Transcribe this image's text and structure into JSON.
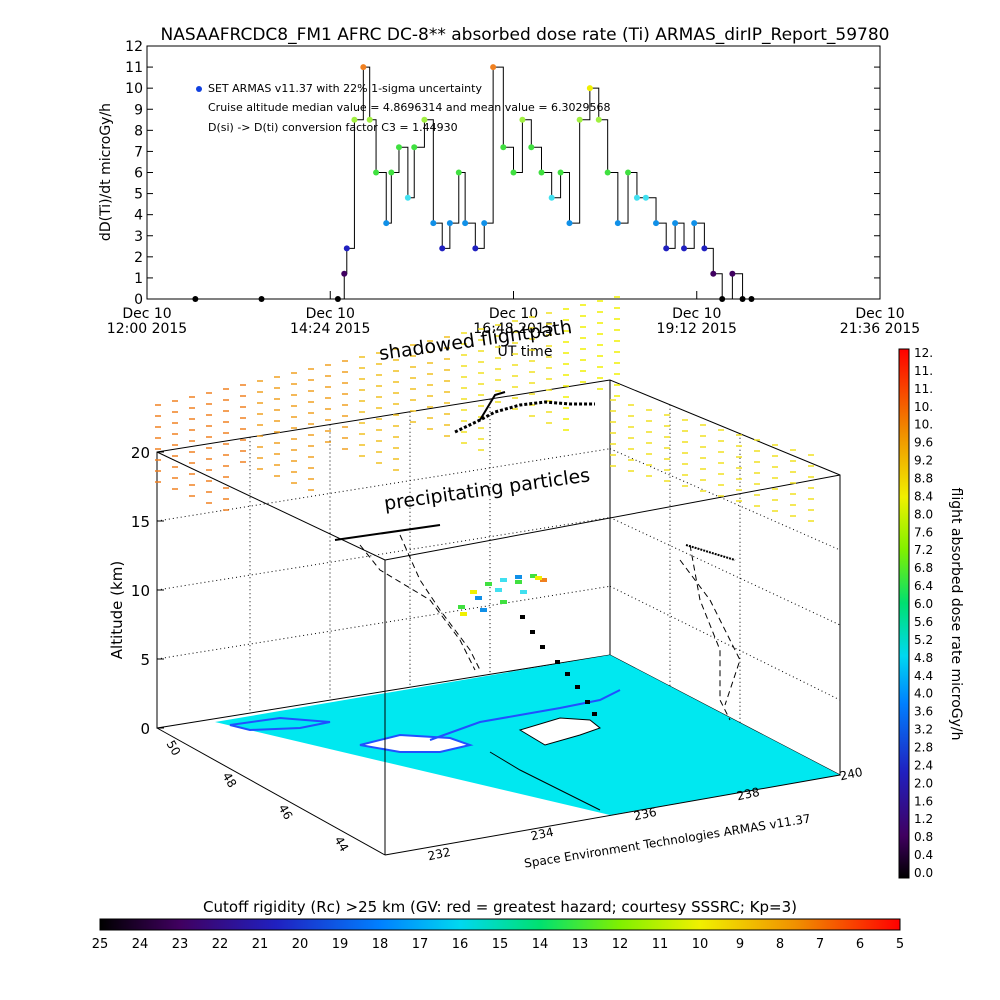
{
  "title": "NASAAFRCDC8_FM1 AFRC DC-8** absorbed dose rate (Ti) ARMAS_dirIP_Report_59780",
  "top_chart": {
    "ylabel": "dD(Ti)/dt microGy/h",
    "xlabel": "UT time",
    "legend": {
      "line1": "SET ARMAS v11.37 with 22% 1-sigma uncertainty",
      "line2": "Cruise altitude median value = 4.8696314 and mean value = 6.3029568",
      "line3": "D(si) -> D(ti) conversion factor C3 = 1.44930"
    },
    "x_ticks": [
      {
        "day": "Dec 10",
        "time": "12:00 2015"
      },
      {
        "day": "Dec 10",
        "time": "14:24 2015"
      },
      {
        "day": "Dec 10",
        "time": "16:48 2015"
      },
      {
        "day": "Dec 10",
        "time": "19:12 2015"
      },
      {
        "day": "Dec 10",
        "time": "21:36 2015"
      }
    ],
    "y_ticks": [
      "0",
      "1",
      "2",
      "3",
      "4",
      "5",
      "6",
      "7",
      "8",
      "9",
      "10",
      "11",
      "12"
    ]
  },
  "chart_data": {
    "type": "line",
    "title": "NASAAFRCDC8_FM1 AFRC DC-8** absorbed dose rate (Ti) ARMAS_dirIP_Report_59780",
    "xlabel": "UT time",
    "ylabel": "dD(Ti)/dt microGy/h",
    "xlim": [
      "2015-12-10 12:00",
      "2015-12-10 21:36"
    ],
    "ylim": [
      0,
      12
    ],
    "series": [
      {
        "name": "SET ARMAS v11.37 with 22% 1-sigma uncertainty",
        "x": [
          "2015-12-10 12:38",
          "2015-12-10 13:30",
          "2015-12-10 14:30",
          "2015-12-10 14:35",
          "2015-12-10 14:37",
          "2015-12-10 14:43",
          "2015-12-10 14:50",
          "2015-12-10 14:55",
          "2015-12-10 15:00",
          "2015-12-10 15:08",
          "2015-12-10 15:12",
          "2015-12-10 15:18",
          "2015-12-10 15:25",
          "2015-12-10 15:30",
          "2015-12-10 15:38",
          "2015-12-10 15:45",
          "2015-12-10 15:52",
          "2015-12-10 15:58",
          "2015-12-10 16:05",
          "2015-12-10 16:10",
          "2015-12-10 16:18",
          "2015-12-10 16:25",
          "2015-12-10 16:32",
          "2015-12-10 16:40",
          "2015-12-10 16:48",
          "2015-12-10 16:55",
          "2015-12-10 17:02",
          "2015-12-10 17:10",
          "2015-12-10 17:18",
          "2015-12-10 17:25",
          "2015-12-10 17:32",
          "2015-12-10 17:40",
          "2015-12-10 17:48",
          "2015-12-10 17:55",
          "2015-12-10 18:02",
          "2015-12-10 18:10",
          "2015-12-10 18:18",
          "2015-12-10 18:25",
          "2015-12-10 18:32",
          "2015-12-10 18:40",
          "2015-12-10 18:48",
          "2015-12-10 18:55",
          "2015-12-10 19:02",
          "2015-12-10 19:10",
          "2015-12-10 19:18",
          "2015-12-10 19:25",
          "2015-12-10 19:32",
          "2015-12-10 19:40",
          "2015-12-10 19:48",
          "2015-12-10 19:55"
        ],
        "values": [
          0,
          0,
          0,
          1.2,
          2.4,
          8.5,
          11,
          8.5,
          6,
          3.6,
          6,
          7.2,
          4.8,
          7.2,
          8.5,
          3.6,
          2.4,
          3.6,
          6,
          3.6,
          2.4,
          3.6,
          11,
          7.2,
          6,
          8.5,
          7.2,
          6,
          4.8,
          6,
          3.6,
          8.5,
          10,
          8.5,
          6,
          3.6,
          6,
          4.8,
          4.8,
          3.6,
          2.4,
          3.6,
          2.4,
          3.6,
          2.4,
          1.2,
          0,
          1.2,
          0,
          0
        ]
      }
    ]
  },
  "map_panel": {
    "annotation_path": "shadowed flightpath",
    "annotation_particles": "precipitating particles",
    "z_label": "Altitude (km)",
    "z_ticks": [
      "0",
      "5",
      "10",
      "15",
      "20"
    ],
    "lat_ticks": [
      "50",
      "48",
      "46",
      "44"
    ],
    "lon_ticks": [
      "232",
      "234",
      "236",
      "238",
      "240"
    ],
    "credit": "Space Environment Technologies ARMAS v11.37"
  },
  "dose_colorbar": {
    "label": "flight absorbed dose rate microGy/h",
    "ticks": [
      "12.",
      "11.",
      "11.",
      "10.",
      "10.",
      "9.6",
      "9.2",
      "8.8",
      "8.4",
      "8.0",
      "7.6",
      "7.2",
      "6.8",
      "6.4",
      "6.0",
      "5.6",
      "5.2",
      "4.8",
      "4.4",
      "4.0",
      "3.6",
      "3.2",
      "2.8",
      "2.4",
      "2.0",
      "1.6",
      "1.2",
      "0.8",
      "0.4",
      "0.0"
    ]
  },
  "rigidity_colorbar": {
    "label": "Cutoff rigidity (Rc) >25 km (GV: red = greatest hazard; courtesy SSSRC; Kp=3)",
    "ticks": [
      "25",
      "24",
      "23",
      "22",
      "21",
      "20",
      "19",
      "18",
      "17",
      "16",
      "15",
      "14",
      "13",
      "12",
      "11",
      "10",
      "9",
      "8",
      "7",
      "6",
      "5"
    ]
  },
  "colors": {
    "ocean": "#00e8f0",
    "coast": "#2050ff",
    "cyan": "#40e0f0",
    "green": "#40e040",
    "yellow": "#f0f000",
    "orange": "#f08020",
    "blue": "#1060e0",
    "navy": "#2020a0",
    "black": "#000000"
  }
}
